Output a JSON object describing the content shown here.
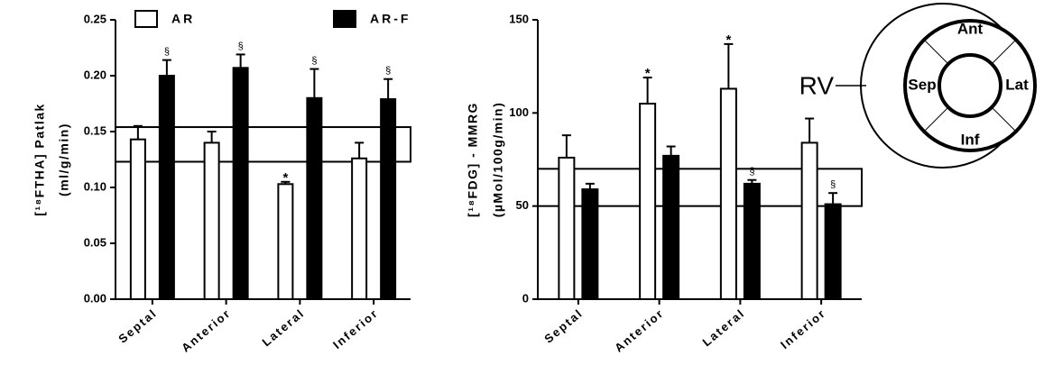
{
  "chart_data": [
    {
      "type": "bar",
      "ylabel_lines": [
        "[¹⁸FTHA] Patlak",
        "(ml/g/min)"
      ],
      "categories": [
        "Septal",
        "Anterior",
        "Lateral",
        "Inferior"
      ],
      "series": [
        {
          "name": "AR",
          "color": "#ffffff",
          "values": [
            0.143,
            0.14,
            0.103,
            0.126
          ],
          "errors": [
            0.012,
            0.01,
            0.002,
            0.014
          ],
          "annotations": [
            null,
            null,
            "*",
            null
          ]
        },
        {
          "name": "AR-F",
          "color": "#000000",
          "values": [
            0.2,
            0.207,
            0.18,
            0.179
          ],
          "errors": [
            0.014,
            0.012,
            0.026,
            0.018
          ],
          "annotations": [
            "§",
            "§",
            "§",
            "§"
          ]
        }
      ],
      "ylim": [
        0,
        0.25
      ],
      "yticks": [
        {
          "value": 0,
          "label": "0.00"
        },
        {
          "value": 0.05,
          "label": "0.05"
        },
        {
          "value": 0.1,
          "label": "0.10"
        },
        {
          "value": 0.15,
          "label": "0.15"
        },
        {
          "value": 0.2,
          "label": "0.20"
        },
        {
          "value": 0.25,
          "label": "0.25"
        }
      ],
      "reference_band": [
        0.123,
        0.154
      ],
      "legend": true
    },
    {
      "type": "bar",
      "ylabel_lines": [
        "[¹⁸FDG] - MMRG",
        "(µMol/100g/min)"
      ],
      "categories": [
        "Septal",
        "Anterior",
        "Lateral",
        "Inferior"
      ],
      "series": [
        {
          "color": "#ffffff",
          "values": [
            76,
            105,
            113,
            84
          ],
          "errors": [
            12,
            14,
            24,
            13
          ],
          "annotations": [
            null,
            "*",
            "*",
            null
          ]
        },
        {
          "color": "#000000",
          "values": [
            59,
            77,
            62,
            51
          ],
          "errors": [
            3,
            5,
            2,
            6
          ],
          "annotations": [
            null,
            null,
            "§",
            "§"
          ]
        }
      ],
      "ylim": [
        0,
        150
      ],
      "yticks": [
        0,
        50,
        100,
        150
      ],
      "reference_band": [
        50,
        70
      ],
      "legend": false
    }
  ],
  "diagram": {
    "ant": "Ant",
    "lat": "Lat",
    "inf": "Inf",
    "sep": "Sep",
    "rv": "RV"
  }
}
